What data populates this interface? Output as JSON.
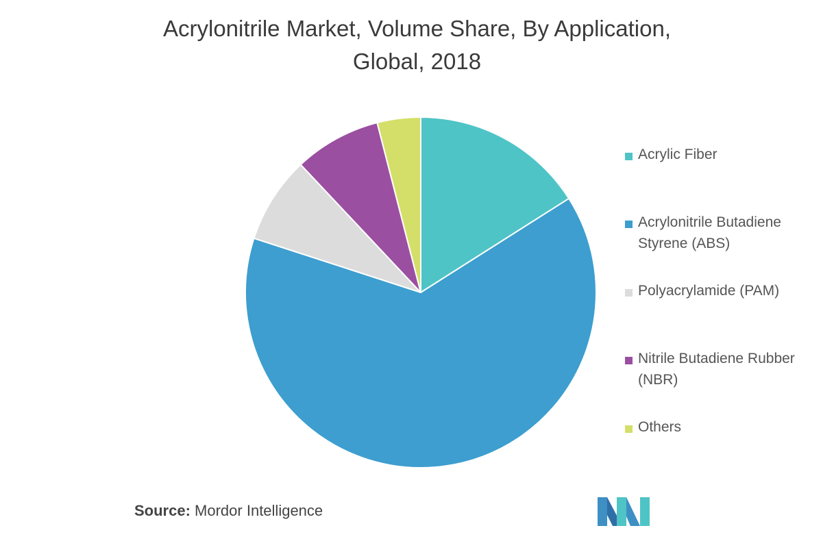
{
  "title_line1": "Acrylonitrile Market, Volume Share, By Application,",
  "title_line2": "Global, 2018",
  "source_label": "Source:",
  "source_value": "Mordor Intelligence",
  "logo_icon": "mordor-intelligence-logo-icon",
  "chart_data": {
    "type": "pie",
    "title": "Acrylonitrile Market, Volume Share, By Application, Global, 2018",
    "start_angle_deg": 0,
    "direction": "clockwise",
    "legend_position": "right",
    "slices": [
      {
        "name": "Acrylic Fiber",
        "value": 16,
        "color": "#4fc4c6"
      },
      {
        "name": "Acrylonitrile Butadiene Styrene (ABS)",
        "value": 64,
        "color": "#3d9ecf"
      },
      {
        "name": "Polyacrylamide (PAM)",
        "value": 8,
        "color": "#dcdcdc"
      },
      {
        "name": "Nitrile Butadiene Rubber (NBR)",
        "value": 8,
        "color": "#9b4fa1"
      },
      {
        "name": "Others",
        "value": 4,
        "color": "#d4df6a"
      }
    ],
    "legend": [
      {
        "lines": [
          "Acrylic Fiber"
        ],
        "color": "#4fc4c6"
      },
      {
        "lines": [
          "Acrylonitrile Butadiene",
          "Styrene (ABS)"
        ],
        "color": "#3d9ecf"
      },
      {
        "lines": [
          "Polyacrylamide (PAM)"
        ],
        "color": "#dcdcdc"
      },
      {
        "lines": [
          "Nitrile Butadiene Rubber",
          "(NBR)"
        ],
        "color": "#9b4fa1"
      },
      {
        "lines": [
          "Others"
        ],
        "color": "#d4df6a"
      }
    ]
  }
}
